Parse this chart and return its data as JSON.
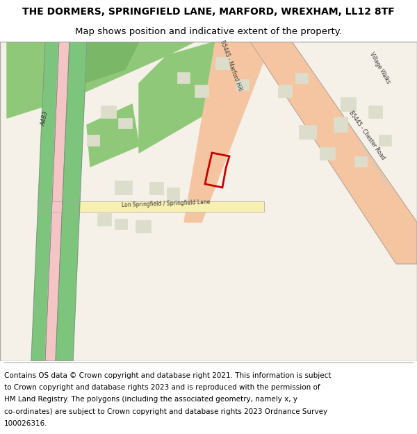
{
  "title_line1": "THE DORMERS, SPRINGFIELD LANE, MARFORD, WREXHAM, LL12 8TF",
  "title_line2": "Map shows position and indicative extent of the property.",
  "footer_text": "Contains OS data © Crown copyright and database right 2021. This information is subject to Crown copyright and database rights 2023 and is reproduced with the permission of HM Land Registry. The polygons (including the associated geometry, namely x, y co-ordinates) are subject to Crown copyright and database rights 2023 Ordnance Survey 100026316.",
  "title_fontsize": 10,
  "footer_fontsize": 7.5,
  "fig_width": 6.0,
  "fig_height": 6.25,
  "map_bg_color": "#f0ede8",
  "border_color": "#cccccc",
  "title_area_color": "#ffffff",
  "footer_area_color": "#ffffff"
}
